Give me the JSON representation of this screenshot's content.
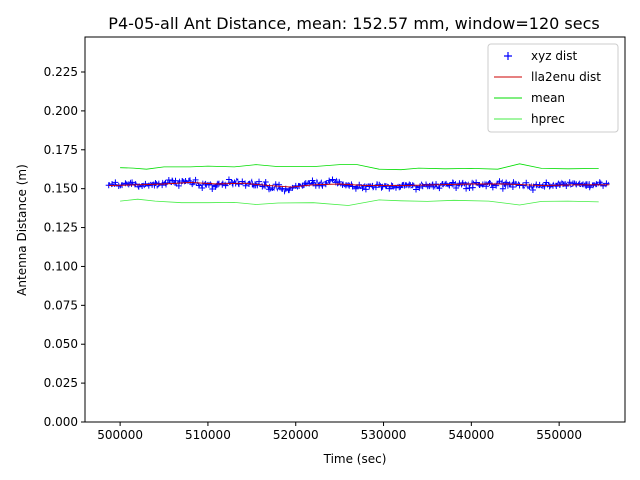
{
  "chart_data": {
    "type": "line",
    "title": "P4-05-all Ant Distance, mean: 152.57 mm, window=120 secs",
    "xlabel": "Time (sec)",
    "ylabel": "Antenna Distance (m)",
    "xlim": [
      496000,
      557500
    ],
    "ylim": [
      0.0,
      0.2475
    ],
    "xticks": [
      500000,
      510000,
      520000,
      530000,
      540000,
      550000
    ],
    "xtick_labels": [
      "500000",
      "510000",
      "520000",
      "530000",
      "540000",
      "550000"
    ],
    "yticks": [
      0.0,
      0.025,
      0.05,
      0.075,
      0.1,
      0.125,
      0.15,
      0.175,
      0.2,
      0.225
    ],
    "ytick_labels": [
      "0.000",
      "0.025",
      "0.050",
      "0.075",
      "0.100",
      "0.125",
      "0.150",
      "0.175",
      "0.200",
      "0.225"
    ],
    "grid": false,
    "legend_position": "top-right",
    "legend": [
      "xyz dist",
      "lla2enu dist",
      "mean",
      "hprec"
    ],
    "series": [
      {
        "name": "xyz dist",
        "style": "plus-markers",
        "color": "#0000ff",
        "x_range": [
          498700,
          555700
        ],
        "center": [
          [
            498700,
            0.152
          ],
          [
            501000,
            0.153
          ],
          [
            503000,
            0.152
          ],
          [
            505000,
            0.153
          ],
          [
            507000,
            0.155
          ],
          [
            509000,
            0.153
          ],
          [
            511000,
            0.152
          ],
          [
            513000,
            0.154
          ],
          [
            515000,
            0.154
          ],
          [
            517000,
            0.151
          ],
          [
            519000,
            0.149
          ],
          [
            521000,
            0.153
          ],
          [
            523000,
            0.154
          ],
          [
            524500,
            0.155
          ],
          [
            526000,
            0.152
          ],
          [
            527500,
            0.151
          ],
          [
            530000,
            0.152
          ],
          [
            533000,
            0.152
          ],
          [
            536000,
            0.152
          ],
          [
            539000,
            0.153
          ],
          [
            542000,
            0.153
          ],
          [
            545000,
            0.153
          ],
          [
            547000,
            0.151
          ],
          [
            549000,
            0.152
          ],
          [
            551000,
            0.153
          ],
          [
            553000,
            0.152
          ],
          [
            555700,
            0.153
          ]
        ],
        "spread": 0.0025
      },
      {
        "name": "lla2enu dist",
        "color": "#cc0000",
        "points": [
          [
            498700,
            0.152
          ],
          [
            502000,
            0.1525
          ],
          [
            505000,
            0.153
          ],
          [
            508000,
            0.154
          ],
          [
            511000,
            0.153
          ],
          [
            514000,
            0.1535
          ],
          [
            517000,
            0.152
          ],
          [
            519500,
            0.151
          ],
          [
            522000,
            0.1525
          ],
          [
            525000,
            0.153
          ],
          [
            528000,
            0.152
          ],
          [
            532000,
            0.152
          ],
          [
            536000,
            0.1525
          ],
          [
            540000,
            0.153
          ],
          [
            544000,
            0.153
          ],
          [
            548000,
            0.152
          ],
          [
            552000,
            0.1525
          ],
          [
            555700,
            0.1525
          ]
        ]
      },
      {
        "name": "mean",
        "color": "#00dd00",
        "points": [
          [
            500000,
            0.1635
          ],
          [
            501500,
            0.1632
          ],
          [
            503000,
            0.1625
          ],
          [
            505000,
            0.164
          ],
          [
            508000,
            0.164
          ],
          [
            510000,
            0.1645
          ],
          [
            513000,
            0.164
          ],
          [
            515500,
            0.1655
          ],
          [
            518000,
            0.1642
          ],
          [
            522000,
            0.1642
          ],
          [
            525000,
            0.1655
          ],
          [
            527000,
            0.1655
          ],
          [
            529500,
            0.1625
          ],
          [
            532000,
            0.1622
          ],
          [
            534000,
            0.1632
          ],
          [
            537000,
            0.1628
          ],
          [
            540000,
            0.163
          ],
          [
            543000,
            0.1625
          ],
          [
            545500,
            0.166
          ],
          [
            548000,
            0.163
          ],
          [
            551000,
            0.1628
          ],
          [
            554500,
            0.163
          ]
        ]
      },
      {
        "name": "hprec",
        "color": "#44ee44",
        "points": [
          [
            500000,
            0.142
          ],
          [
            502000,
            0.1432
          ],
          [
            504000,
            0.142
          ],
          [
            507000,
            0.141
          ],
          [
            510000,
            0.141
          ],
          [
            513000,
            0.1412
          ],
          [
            515500,
            0.1398
          ],
          [
            518000,
            0.1408
          ],
          [
            522000,
            0.141
          ],
          [
            526000,
            0.1392
          ],
          [
            529500,
            0.1428
          ],
          [
            532000,
            0.1422
          ],
          [
            535000,
            0.1418
          ],
          [
            538000,
            0.1425
          ],
          [
            542000,
            0.142
          ],
          [
            545500,
            0.1395
          ],
          [
            548000,
            0.1418
          ],
          [
            551000,
            0.142
          ],
          [
            554500,
            0.1415
          ]
        ]
      }
    ]
  }
}
